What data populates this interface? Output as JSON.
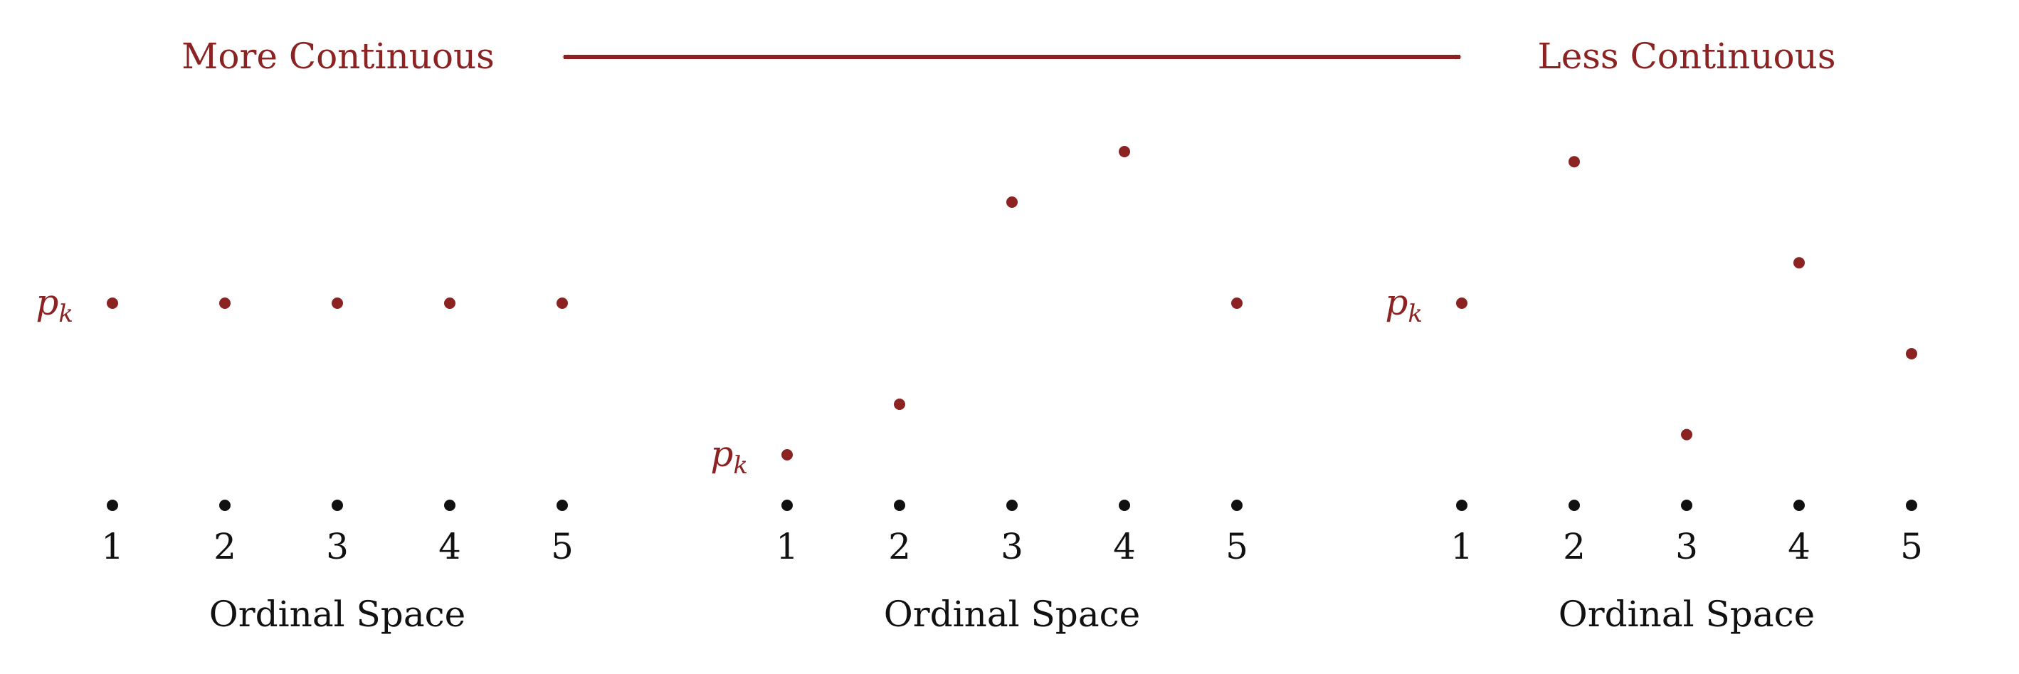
{
  "header": {
    "left_label": "More Continuous",
    "right_label": "Less Continuous",
    "arrow_icon": "double-headed-arrow-icon"
  },
  "colors": {
    "accent": "#8b2323",
    "ink": "#111111"
  },
  "panels": [
    {
      "axis_label": "Ordinal Space",
      "marker_label": "p",
      "marker_sub": "k",
      "ticks": [
        "1",
        "2",
        "3",
        "4",
        "5"
      ],
      "values": [
        0,
        0,
        0,
        0,
        0
      ]
    },
    {
      "axis_label": "Ordinal Space",
      "marker_label": "p",
      "marker_sub": "k",
      "ticks": [
        "1",
        "2",
        "3",
        "4",
        "5"
      ],
      "values": [
        -1.5,
        -1,
        1,
        1.5,
        0
      ]
    },
    {
      "axis_label": "Ordinal Space",
      "marker_label": "p",
      "marker_sub": "k",
      "ticks": [
        "1",
        "2",
        "3",
        "4",
        "5"
      ],
      "values": [
        0,
        1.4,
        -1.3,
        0.4,
        -0.5
      ]
    }
  ]
}
